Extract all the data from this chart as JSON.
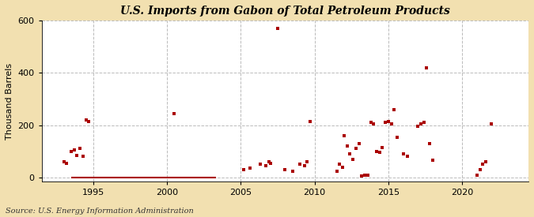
{
  "title": "U.S. Imports from Gabon of Total Petroleum Products",
  "ylabel": "Thousand Barrels",
  "source": "Source: U.S. Energy Information Administration",
  "background_color": "#f2e0b0",
  "plot_bg_color": "#ffffff",
  "marker_color": "#aa0000",
  "marker_size": 8,
  "line_color": "#aa0000",
  "ylim": [
    -15,
    600
  ],
  "yticks": [
    0,
    200,
    400,
    600
  ],
  "xlim": [
    1991.5,
    2024.5
  ],
  "xticks": [
    1995,
    2000,
    2005,
    2010,
    2015,
    2020
  ],
  "grid_color": "#bbbbbb",
  "zero_line_start": 1993.5,
  "zero_line_end": 2003.3,
  "data_points": [
    [
      1993.0,
      60
    ],
    [
      1993.2,
      55
    ],
    [
      1993.5,
      100
    ],
    [
      1993.7,
      105
    ],
    [
      1993.9,
      85
    ],
    [
      1994.1,
      110
    ],
    [
      1994.3,
      80
    ],
    [
      1994.5,
      220
    ],
    [
      1994.7,
      215
    ],
    [
      2000.5,
      245
    ],
    [
      2005.2,
      30
    ],
    [
      2005.6,
      35
    ],
    [
      2006.3,
      50
    ],
    [
      2006.7,
      45
    ],
    [
      2006.9,
      60
    ],
    [
      2007.0,
      55
    ],
    [
      2007.5,
      570
    ],
    [
      2008.0,
      30
    ],
    [
      2008.5,
      25
    ],
    [
      2009.0,
      50
    ],
    [
      2009.3,
      45
    ],
    [
      2009.5,
      60
    ],
    [
      2009.7,
      215
    ],
    [
      2011.5,
      25
    ],
    [
      2011.7,
      50
    ],
    [
      2011.9,
      40
    ],
    [
      2012.0,
      160
    ],
    [
      2012.2,
      120
    ],
    [
      2012.4,
      90
    ],
    [
      2012.6,
      70
    ],
    [
      2012.8,
      110
    ],
    [
      2013.0,
      130
    ],
    [
      2013.2,
      5
    ],
    [
      2013.4,
      10
    ],
    [
      2013.6,
      8
    ],
    [
      2013.8,
      210
    ],
    [
      2014.0,
      205
    ],
    [
      2014.2,
      100
    ],
    [
      2014.4,
      95
    ],
    [
      2014.6,
      115
    ],
    [
      2014.8,
      210
    ],
    [
      2015.0,
      215
    ],
    [
      2015.2,
      205
    ],
    [
      2015.4,
      260
    ],
    [
      2015.6,
      155
    ],
    [
      2016.0,
      90
    ],
    [
      2016.3,
      80
    ],
    [
      2017.0,
      195
    ],
    [
      2017.2,
      205
    ],
    [
      2017.4,
      210
    ],
    [
      2017.6,
      420
    ],
    [
      2017.8,
      130
    ],
    [
      2018.0,
      65
    ],
    [
      2021.0,
      10
    ],
    [
      2021.2,
      30
    ],
    [
      2021.4,
      50
    ],
    [
      2021.6,
      60
    ],
    [
      2022.0,
      205
    ]
  ]
}
